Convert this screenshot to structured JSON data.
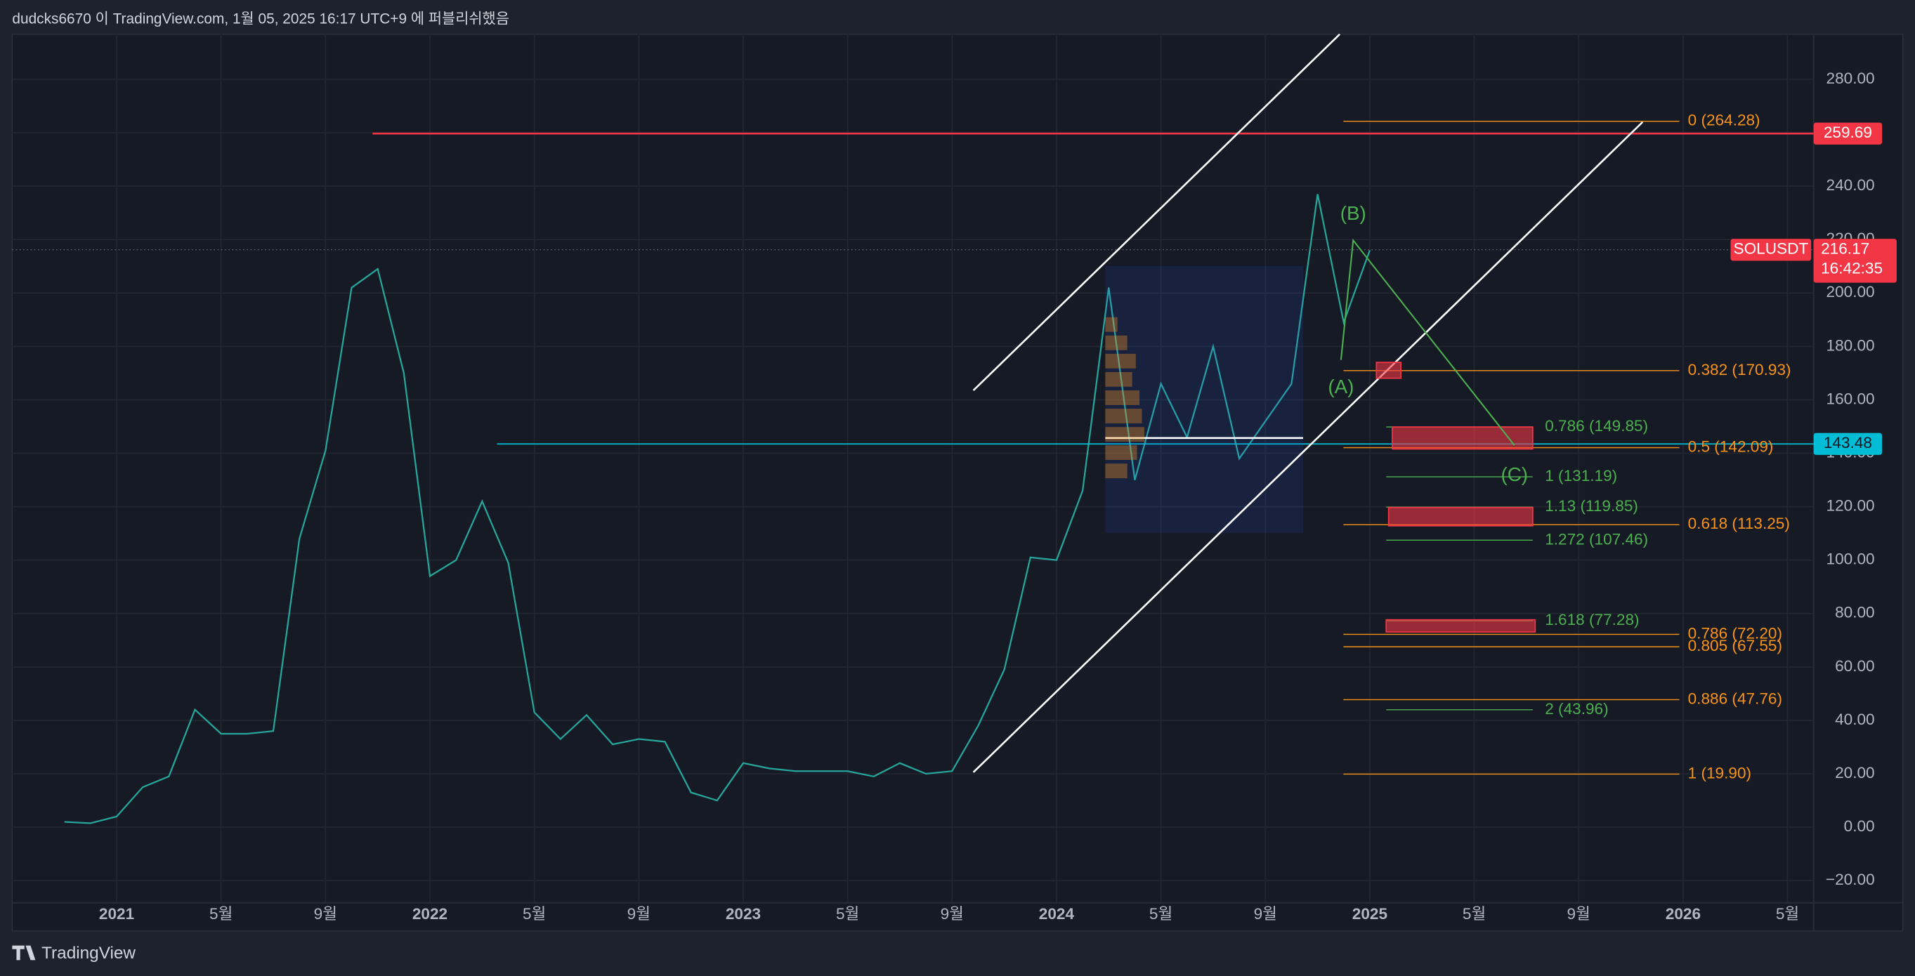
{
  "header": {
    "text": "dudcks6670 이 TradingView.com, 1월 05, 2025 16:17 UTC+9 에 퍼블리쉬했음"
  },
  "footer": {
    "brand": "TradingView"
  },
  "chart_data": {
    "type": "line",
    "x": [
      "2020-11",
      "2020-12",
      "2021-01",
      "2021-02",
      "2021-03",
      "2021-04",
      "2021-05",
      "2021-06",
      "2021-07",
      "2021-08",
      "2021-09",
      "2021-10",
      "2021-11",
      "2021-12",
      "2022-01",
      "2022-02",
      "2022-03",
      "2022-04",
      "2022-05",
      "2022-06",
      "2022-07",
      "2022-08",
      "2022-09",
      "2022-10",
      "2022-11",
      "2022-12",
      "2023-01",
      "2023-02",
      "2023-03",
      "2023-04",
      "2023-05",
      "2023-06",
      "2023-07",
      "2023-08",
      "2023-09",
      "2023-10",
      "2023-11",
      "2023-12",
      "2024-01",
      "2024-02",
      "2024-03",
      "2024-04",
      "2024-05",
      "2024-06",
      "2024-07",
      "2024-08",
      "2024-09",
      "2024-10",
      "2024-11",
      "2024-12",
      "2025-01"
    ],
    "series": [
      {
        "name": "SOLUSDT",
        "color": "#26a69a",
        "values": [
          2,
          1.5,
          4,
          15,
          19,
          44,
          35,
          35,
          36,
          108,
          141,
          202,
          209,
          170,
          94,
          100,
          122,
          99,
          43,
          33,
          42,
          31,
          33,
          32,
          13,
          10,
          24,
          22,
          21,
          21,
          21,
          19,
          24,
          20,
          21,
          38,
          59,
          101,
          100,
          126,
          202,
          130,
          166,
          146,
          180,
          138,
          152,
          166,
          237,
          189,
          216
        ]
      }
    ],
    "xlim": [
      "2020-09",
      "2026-06"
    ],
    "xticks": [
      {
        "value": "2021-01",
        "label": "2021"
      },
      {
        "value": "2021-05",
        "label": "5월"
      },
      {
        "value": "2021-09",
        "label": "9월"
      },
      {
        "value": "2022-01",
        "label": "2022"
      },
      {
        "value": "2022-05",
        "label": "5월"
      },
      {
        "value": "2022-09",
        "label": "9월"
      },
      {
        "value": "2023-01",
        "label": "2023"
      },
      {
        "value": "2023-05",
        "label": "5월"
      },
      {
        "value": "2023-09",
        "label": "9월"
      },
      {
        "value": "2024-01",
        "label": "2024"
      },
      {
        "value": "2024-05",
        "label": "5월"
      },
      {
        "value": "2024-09",
        "label": "9월"
      },
      {
        "value": "2025-01",
        "label": "2025"
      },
      {
        "value": "2025-05",
        "label": "5월"
      },
      {
        "value": "2025-09",
        "label": "9월"
      },
      {
        "value": "2026-01",
        "label": "2026"
      },
      {
        "value": "2026-05",
        "label": "5월"
      }
    ],
    "ylim": [
      -28.3,
      296.9
    ],
    "yticks": [
      {
        "value": -20,
        "label": "−20.00"
      },
      {
        "value": 0,
        "label": "0.00"
      },
      {
        "value": 20,
        "label": "20.00"
      },
      {
        "value": 40,
        "label": "40.00"
      },
      {
        "value": 60,
        "label": "60.00"
      },
      {
        "value": 80,
        "label": "80.00"
      },
      {
        "value": 100,
        "label": "100.00"
      },
      {
        "value": 120,
        "label": "120.00"
      },
      {
        "value": 140,
        "label": "140.00"
      },
      {
        "value": 160,
        "label": "160.00"
      },
      {
        "value": 180,
        "label": "180.00"
      },
      {
        "value": 200,
        "label": "200.00"
      },
      {
        "value": 220,
        "label": "220.00"
      },
      {
        "value": 240,
        "label": "240.00"
      },
      {
        "value": 260,
        "label": "260.00"
      },
      {
        "value": 280,
        "label": "280.00"
      }
    ],
    "grid": true,
    "marked_prices": [
      {
        "value": 259.69,
        "color": "#f23645"
      },
      {
        "value": 143.48,
        "color": "#00bcd4"
      }
    ],
    "last_price": {
      "symbol": "SOLUSDT",
      "value": 216.17,
      "countdown": "16:42:35",
      "color": "#f23645"
    },
    "fib_levels": {
      "color": "#f7931a",
      "levels": [
        {
          "label": "0 (264.28)",
          "value": 264.28
        },
        {
          "label": "0.382 (170.93)",
          "value": 170.93
        },
        {
          "label": "0.5 (142.09)",
          "value": 142.09
        },
        {
          "label": "0.618 (113.25)",
          "value": 113.25
        },
        {
          "label": "0.786 (72.20)",
          "value": 72.2
        },
        {
          "label": "0.805 (67.55)",
          "value": 67.55
        },
        {
          "label": "0.886 (47.76)",
          "value": 47.76
        },
        {
          "label": "1 (19.90)",
          "value": 19.9
        }
      ]
    },
    "extension_levels": {
      "color": "#4caf50",
      "levels": [
        {
          "label": "0.786 (149.85)",
          "value": 149.85
        },
        {
          "label": "1 (131.19)",
          "value": 131.19
        },
        {
          "label": "1.13 (119.85)",
          "value": 119.85
        },
        {
          "label": "1.272 (107.46)",
          "value": 107.46
        },
        {
          "label": "1.618 (77.28)",
          "value": 77.28
        },
        {
          "label": "2 (43.96)",
          "value": 43.96
        }
      ]
    },
    "wave_labels": [
      "(A)",
      "(B)",
      "(C)"
    ]
  }
}
